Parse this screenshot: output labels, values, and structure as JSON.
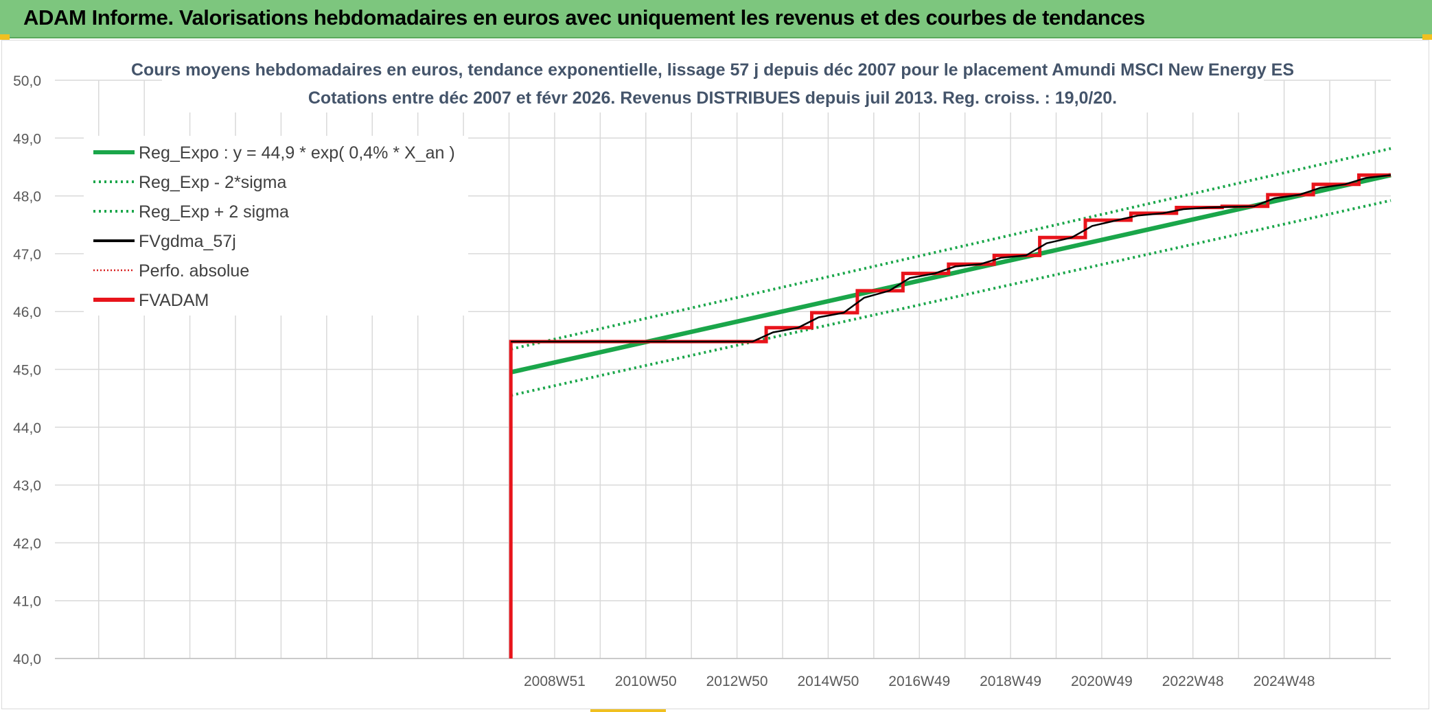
{
  "banner": {
    "title": "ADAM Informe. Valorisations hebdomadaires en euros avec uniquement les revenus et des courbes de tendances"
  },
  "colors": {
    "banner_bg": "#7dc67e",
    "reg_green": "#1aa64a",
    "fv_black": "#000000",
    "adam_red": "#e8141b",
    "perfo_red": "#d81e1e",
    "grid": "#d9d9d9",
    "axis_text": "#595959",
    "title_text": "#44546a"
  },
  "chart_data": {
    "type": "line",
    "title_line1": "Cours moyens hebdomadaires en euros, tendance exponentielle, lissage 57 j depuis déc 2007 pour le placement Amundi MSCI New Energy ES",
    "title_line2": "Cotations entre déc 2007 et févr 2026. Revenus DISTRIBUES depuis juil 2013. Reg. croiss. : 19,0/20.",
    "xlabel": "",
    "ylabel": "",
    "ylim": [
      40.0,
      50.0
    ],
    "y_ticks": [
      "40,0",
      "41,0",
      "42,0",
      "43,0",
      "44,0",
      "45,0",
      "46,0",
      "47,0",
      "48,0",
      "49,0",
      "50,0"
    ],
    "x_ticks": [
      "2008W51",
      "2010W50",
      "2012W50",
      "2014W50",
      "2016W49",
      "2018W49",
      "2020W49",
      "2022W48",
      "2024W48"
    ],
    "x_tick_years": [
      2008.96,
      2010.96,
      2012.96,
      2014.96,
      2016.96,
      2018.96,
      2020.96,
      2022.96,
      2024.96
    ],
    "xlim": [
      1998.0,
      2027.3
    ],
    "grid": true,
    "legend_position": "top-left",
    "legend": [
      {
        "name": "Reg_Expo : y = 44,9 * exp( 0,4% *  X_an )",
        "style": "solid-thick",
        "color": "#1aa64a"
      },
      {
        "name": "Reg_Exp - 2*sigma",
        "style": "dotted",
        "color": "#1aa64a"
      },
      {
        "name": "Reg_Exp + 2 sigma",
        "style": "dotted",
        "color": "#1aa64a"
      },
      {
        "name": "FVgdma_57j",
        "style": "solid",
        "color": "#000000"
      },
      {
        "name": "Perfo. absolue",
        "style": "dotted-thin",
        "color": "#d81e1e"
      },
      {
        "name": "FVADAM",
        "style": "solid-thick",
        "color": "#e8141b"
      }
    ],
    "series": [
      {
        "name": "Reg_Expo : y = 44,9 * exp( 0,4% *  X_an )",
        "x": [
          2008.0,
          2027.3
        ],
        "y": [
          44.95,
          48.36
        ]
      },
      {
        "name": "Reg_Exp + 2 sigma",
        "x": [
          2008.0,
          2027.3
        ],
        "y": [
          45.35,
          48.82
        ]
      },
      {
        "name": "Reg_Exp - 2*sigma",
        "x": [
          2008.0,
          2027.3
        ],
        "y": [
          44.55,
          47.92
        ]
      },
      {
        "name": "FVADAM",
        "x": [
          2008.0,
          2008.0,
          2013.6,
          2013.6,
          2014.6,
          2014.6,
          2015.6,
          2015.6,
          2016.6,
          2016.6,
          2017.6,
          2017.6,
          2018.6,
          2018.6,
          2019.6,
          2019.6,
          2020.6,
          2020.6,
          2021.6,
          2021.6,
          2022.6,
          2022.6,
          2023.6,
          2023.6,
          2024.6,
          2024.6,
          2025.6,
          2025.6,
          2026.6,
          2026.6,
          2027.3
        ],
        "y": [
          40.0,
          45.48,
          45.48,
          45.72,
          45.72,
          45.98,
          45.98,
          46.36,
          46.36,
          46.66,
          46.66,
          46.82,
          46.82,
          46.97,
          46.97,
          47.28,
          47.28,
          47.58,
          47.58,
          47.7,
          47.7,
          47.8,
          47.8,
          47.82,
          47.82,
          48.02,
          48.02,
          48.2,
          48.2,
          48.36,
          48.36
        ]
      },
      {
        "name": "FVgdma_57j",
        "x": [
          2008.0,
          2013.3,
          2013.75,
          2014.3,
          2014.75,
          2015.3,
          2015.75,
          2016.3,
          2016.75,
          2017.3,
          2017.75,
          2018.3,
          2018.75,
          2019.3,
          2019.75,
          2020.3,
          2020.75,
          2021.3,
          2021.75,
          2022.3,
          2022.75,
          2023.3,
          2023.75,
          2024.3,
          2024.75,
          2025.3,
          2025.75,
          2026.3,
          2026.75,
          2027.3
        ],
        "y": [
          45.48,
          45.48,
          45.64,
          45.72,
          45.9,
          45.98,
          46.24,
          46.36,
          46.58,
          46.66,
          46.78,
          46.82,
          46.93,
          46.97,
          47.18,
          47.28,
          47.48,
          47.58,
          47.66,
          47.7,
          47.77,
          47.8,
          47.81,
          47.82,
          47.96,
          48.02,
          48.14,
          48.2,
          48.31,
          48.36
        ]
      }
    ]
  }
}
